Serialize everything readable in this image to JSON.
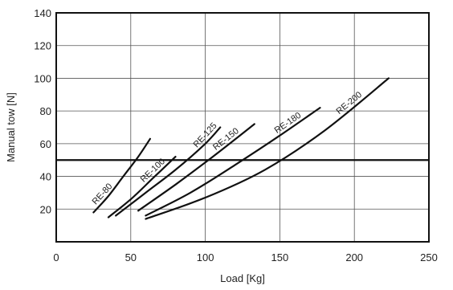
{
  "chart_data": {
    "type": "line",
    "xlabel": "Load [Kg]",
    "ylabel": "Manual tow [N]",
    "xlim": [
      0,
      250
    ],
    "ylim": [
      0,
      140
    ],
    "xticks": [
      0,
      50,
      100,
      150,
      200,
      250
    ],
    "yticks": [
      20,
      40,
      60,
      80,
      100,
      120,
      140
    ],
    "grid": true,
    "reference_line": {
      "y": 50
    },
    "series": [
      {
        "name": "RE-80",
        "x": [
          25,
          35,
          45,
          55,
          63
        ],
        "y": [
          18,
          28,
          40,
          52,
          63
        ]
      },
      {
        "name": "RE-100",
        "x": [
          35,
          50,
          65,
          80
        ],
        "y": [
          15,
          26,
          39,
          52
        ]
      },
      {
        "name": "RE-125",
        "x": [
          40,
          60,
          80,
          100,
          110
        ],
        "y": [
          16,
          30,
          44,
          60,
          70
        ]
      },
      {
        "name": "RE-150",
        "x": [
          55,
          80,
          105,
          133
        ],
        "y": [
          19,
          35,
          52,
          72
        ]
      },
      {
        "name": "RE-180",
        "x": [
          60,
          90,
          120,
          150,
          177
        ],
        "y": [
          16,
          30,
          47,
          65,
          82
        ]
      },
      {
        "name": "RE-200",
        "x": [
          60,
          100,
          140,
          180,
          223
        ],
        "y": [
          14,
          27,
          44,
          68,
          100
        ]
      }
    ]
  }
}
